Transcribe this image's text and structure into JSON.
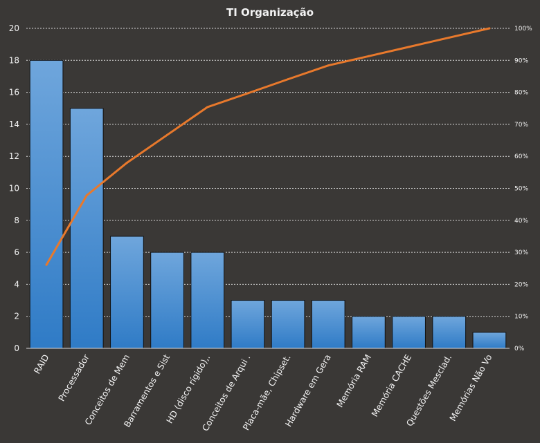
{
  "chart_data": {
    "type": "bar",
    "title": "TI Organização",
    "categories": [
      "RAID",
      "Processador",
      "Conceitos de Mem",
      "Barramentos e Sist",
      "HD (disco rígido),.",
      "Conceitos de Arqui .",
      "Placa-mãe, Chipset.",
      "Hardware em Gera",
      "Memória RAM",
      "Memória CACHE",
      "Questões Mesclad.",
      "Memórias Não Vo"
    ],
    "series": [
      {
        "type": "bar",
        "values": [
          18,
          15,
          7,
          6,
          6,
          3,
          3,
          3,
          2,
          2,
          2,
          1
        ]
      },
      {
        "type": "line",
        "axis": "secondary",
        "values": [
          26.1,
          47.8,
          58.0,
          66.7,
          75.4,
          79.7,
          84.1,
          88.4,
          91.3,
          94.2,
          97.1,
          100
        ]
      }
    ],
    "ylim": [
      0,
      20
    ],
    "yticks": [
      "0",
      "2",
      "4",
      "6",
      "8",
      "10",
      "12",
      "14",
      "16",
      "18",
      "20"
    ],
    "y2lim": [
      0,
      100
    ],
    "y2ticks": [
      "0%",
      "10%",
      "20%",
      "30%",
      "40%",
      "50%",
      "60%",
      "70%",
      "80%",
      "90%",
      "100%"
    ],
    "grid": true,
    "colors": {
      "background": "#3a3836",
      "bar_top": "#6fa6dc",
      "bar_bottom": "#2f7bc6",
      "bar_edge": "#111111",
      "line": "#e8792c",
      "grid": "#d9d9d9",
      "text": "#f2f2f2"
    }
  }
}
